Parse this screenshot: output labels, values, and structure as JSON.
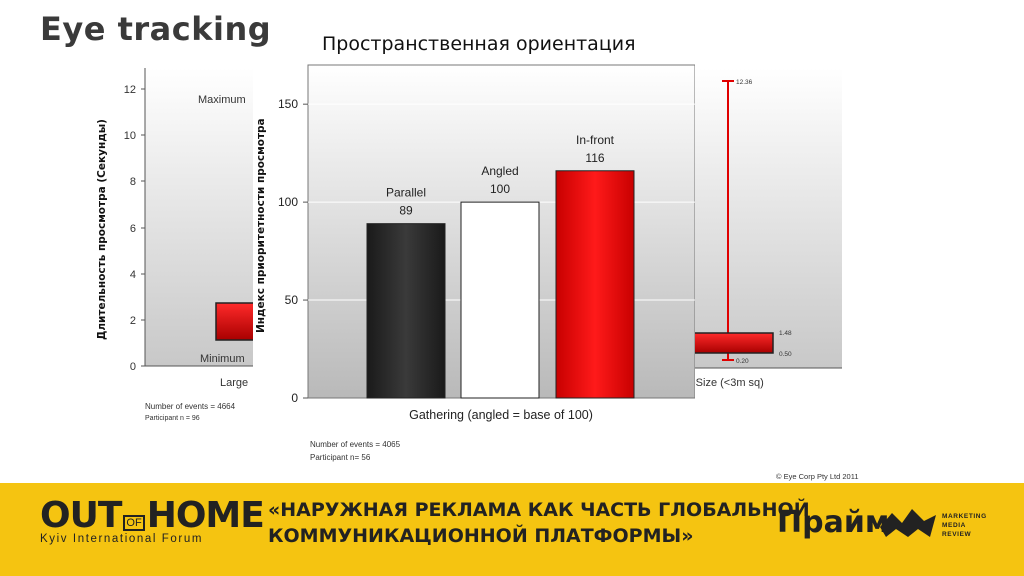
{
  "slide": {
    "title": "Eye tracking",
    "chart_heading": "Пространственная ориентация",
    "left_axis_label": "Длительность просмотра (Секунды)",
    "mid_axis_label": "Индекс приоритетности просмотра"
  },
  "background_left": {
    "y_ticks": [
      "12",
      "10",
      "8",
      "6",
      "4",
      "2",
      "0"
    ],
    "max_label": "Maximum",
    "min_label": "Minimum",
    "category": "Large",
    "note_line1": "Number of events = 4664",
    "note_line2": "Participant n = 96"
  },
  "background_right": {
    "top_value": "12.36",
    "mid_value": "1.48",
    "low_value": "0.50",
    "min_value": "0.20",
    "category": "-Size (<3m sq)",
    "copyright": "© Eye Corp Pty Ltd 2011"
  },
  "chart_data": {
    "type": "bar",
    "categories": [
      "Parallel",
      "Angled",
      "In-front"
    ],
    "values": [
      89,
      100,
      116
    ],
    "xlabel": "Gathering (angled = base of 100)",
    "ylabel": "",
    "ylim": [
      0,
      170
    ],
    "yticks": [
      0,
      50,
      100,
      150
    ],
    "grid": true,
    "bar_colors": [
      "#2b2b2b",
      "#ffffff",
      "#e00000"
    ],
    "note_line1": "Number of events = 4065",
    "note_line2": "Participant n= 56"
  },
  "footer": {
    "logo_out": "OUT",
    "logo_of": "OF",
    "logo_home": "HOME",
    "logo_sub": "Kyiv International Forum",
    "banner_line1": "«НАРУЖНАЯ РЕКЛАМА КАК ЧАСТЬ ГЛОБАЛЬНОЙ",
    "banner_line2": "КОММУНИКАЦИОННОЙ ПЛАТФОРМЫ»",
    "prime_logo": "Прайм",
    "mmr_line1": "MARKETING",
    "mmr_line2": "MEDIA",
    "mmr_line3": "REVIEW",
    "colors": {
      "footer_bg": "#f5c411",
      "text": "#222222"
    }
  }
}
